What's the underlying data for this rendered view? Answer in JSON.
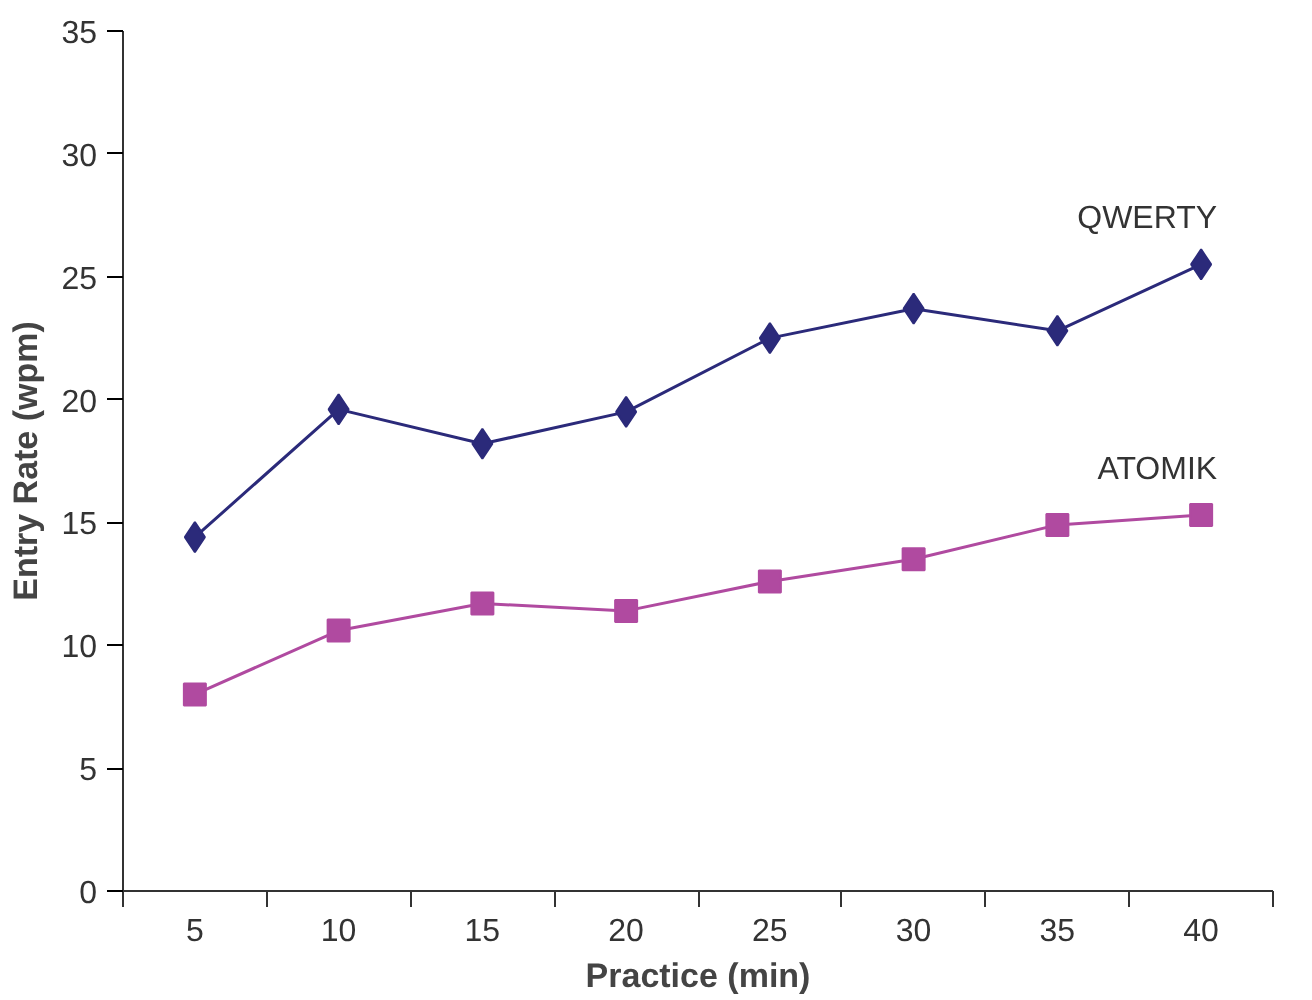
{
  "chart_data": {
    "type": "line",
    "xlabel": "Practice (min)",
    "ylabel": "Entry Rate (wpm)",
    "x": [
      5,
      10,
      15,
      20,
      25,
      30,
      35,
      40
    ],
    "xlim": [
      2.5,
      42.5
    ],
    "xticks": [
      5,
      10,
      15,
      20,
      25,
      30,
      35,
      40
    ],
    "ylim": [
      0,
      35
    ],
    "yticks": [
      0,
      5,
      10,
      15,
      20,
      25,
      30,
      35
    ],
    "grid": false,
    "series": [
      {
        "name": "QWERTY",
        "color": "#2b2a7a",
        "marker": "diamond",
        "values": [
          14.4,
          19.6,
          18.2,
          19.5,
          22.5,
          23.7,
          22.8,
          25.5
        ]
      },
      {
        "name": "ATOMIK",
        "color": "#b04aa0",
        "marker": "square",
        "values": [
          8.0,
          10.6,
          11.7,
          11.4,
          12.6,
          13.5,
          14.9,
          15.3
        ]
      }
    ]
  }
}
